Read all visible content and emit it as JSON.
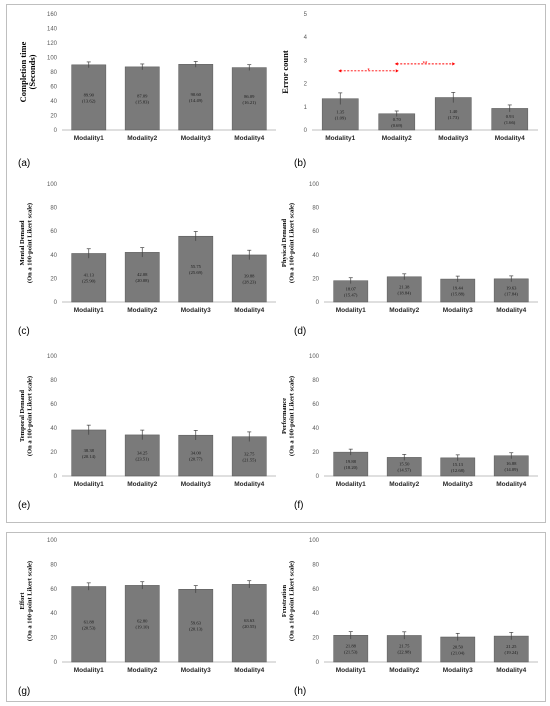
{
  "colors": {
    "bar": "#7a7a7a",
    "bar_stroke": "#555555",
    "axis": "#bfbfbf",
    "error_bar": "#404040",
    "significance": "#ff0000"
  },
  "chart_data": [
    {
      "id": "a",
      "type": "bar",
      "panel_label": "(a)",
      "ylabel": [
        "Completion time",
        "(Seconds)"
      ],
      "categories": [
        "Modality1",
        "Modality2",
        "Modality3",
        "Modality4"
      ],
      "values": [
        89.9,
        87.09,
        90.6,
        86.09
      ],
      "errors": [
        4,
        4,
        4,
        4
      ],
      "data_labels": [
        [
          "89.90",
          "(13.62)"
        ],
        [
          "87.09",
          "(15.83)"
        ],
        [
          "90.60",
          "(14.49)"
        ],
        [
          "86.09",
          "(16.21)"
        ]
      ],
      "ylim": [
        0,
        160
      ],
      "yticks": [
        0,
        20,
        40,
        60,
        80,
        100,
        120,
        140,
        160
      ]
    },
    {
      "id": "b",
      "type": "bar",
      "panel_label": "(b)",
      "ylabel": [
        "Error count"
      ],
      "categories": [
        "Modality1",
        "Modality2",
        "Modality3",
        "Modality4"
      ],
      "values": [
        1.35,
        0.7,
        1.4,
        0.93
      ],
      "errors": [
        0.25,
        0.12,
        0.22,
        0.15
      ],
      "data_labels": [
        [
          "1.35",
          "(1.09)"
        ],
        [
          "0.70",
          "(0.69)"
        ],
        [
          "1.40",
          "(1.73)"
        ],
        [
          "0.93",
          "(1.66)"
        ]
      ],
      "ylim": [
        0,
        5
      ],
      "yticks": [
        0,
        1,
        2,
        3,
        4,
        5
      ],
      "significance": [
        {
          "from": 0,
          "to": 1,
          "y": 2.55,
          "label": "*"
        },
        {
          "from": 1,
          "to": 2,
          "y": 2.85,
          "label": "**"
        }
      ]
    },
    {
      "id": "c",
      "type": "bar",
      "panel_label": "(c)",
      "ylabel": [
        "Mental Demand",
        "(On a 100-point Likert scale)"
      ],
      "categories": [
        "Modality1",
        "Modality2",
        "Modality3",
        "Modality4"
      ],
      "values": [
        41.13,
        42.08,
        55.75,
        39.88
      ],
      "errors": [
        4,
        4,
        4,
        4
      ],
      "data_labels": [
        [
          "41.13",
          "(25.90)"
        ],
        [
          "42.08",
          "(20.08)"
        ],
        [
          "55.75",
          "(25.69)"
        ],
        [
          "39.88",
          "(28.23)"
        ]
      ],
      "ylim": [
        0,
        100
      ],
      "yticks": [
        0,
        20,
        40,
        60,
        80,
        100
      ]
    },
    {
      "id": "d",
      "type": "bar",
      "panel_label": "(d)",
      "ylabel": [
        "Physical Demand",
        "(On a 100-point Likert scale)"
      ],
      "categories": [
        "Modality1",
        "Modality2",
        "Modality3",
        "Modality4"
      ],
      "values": [
        18.07,
        21.38,
        19.44,
        19.63
      ],
      "errors": [
        2.5,
        2.5,
        2.5,
        2.5
      ],
      "data_labels": [
        [
          "18.07",
          "(15.47)"
        ],
        [
          "21.38",
          "(18.84)"
        ],
        [
          "19.44",
          "(15.88)"
        ],
        [
          "19.63",
          "(17.84)"
        ]
      ],
      "ylim": [
        0,
        100
      ],
      "yticks": [
        0,
        20,
        40,
        60,
        80,
        100
      ]
    },
    {
      "id": "e",
      "type": "bar",
      "panel_label": "(e)",
      "ylabel": [
        "Temporal Demand",
        "(On a 100-point Likert scale)"
      ],
      "categories": [
        "Modality1",
        "Modality2",
        "Modality3",
        "Modality4"
      ],
      "values": [
        38.38,
        34.25,
        34.0,
        32.75
      ],
      "errors": [
        4,
        4,
        4,
        4
      ],
      "data_labels": [
        [
          "38.38",
          "(20.14)"
        ],
        [
          "34.25",
          "(23.51)"
        ],
        [
          "34.00",
          "(20.77)"
        ],
        [
          "32.75",
          "(21.55)"
        ]
      ],
      "ylim": [
        0,
        100
      ],
      "yticks": [
        0,
        20,
        40,
        60,
        80,
        100
      ]
    },
    {
      "id": "f",
      "type": "bar",
      "panel_label": "(f)",
      "ylabel": [
        "Performance",
        "(On a 100-point Likert scale)"
      ],
      "categories": [
        "Modality1",
        "Modality2",
        "Modality3",
        "Modality4"
      ],
      "values": [
        19.88,
        15.5,
        15.13,
        16.88
      ],
      "errors": [
        2.5,
        2.5,
        2.5,
        2.5
      ],
      "data_labels": [
        [
          "19.88",
          "(18.20)"
        ],
        [
          "15.50",
          "(14.57)"
        ],
        [
          "15.13",
          "(12.68)"
        ],
        [
          "16.88",
          "(14.09)"
        ]
      ],
      "ylim": [
        0,
        100
      ],
      "yticks": [
        0,
        20,
        40,
        60,
        80,
        100
      ]
    },
    {
      "id": "g",
      "type": "bar",
      "panel_label": "(g)",
      "ylabel": [
        "Effort",
        "(On a 100-point Likert scale)"
      ],
      "categories": [
        "Modality1",
        "Modality2",
        "Modality3",
        "Modality4"
      ],
      "values": [
        61.88,
        62.8,
        59.63,
        63.63
      ],
      "errors": [
        3,
        3,
        3,
        3
      ],
      "data_labels": [
        [
          "61.88",
          "(20.53)"
        ],
        [
          "62.80",
          "(19.10)"
        ],
        [
          "59.63",
          "(20.13)"
        ],
        [
          "63.63",
          "(20.55)"
        ]
      ],
      "ylim": [
        0,
        100
      ],
      "yticks": [
        0,
        20,
        40,
        60,
        80,
        100
      ]
    },
    {
      "id": "h",
      "type": "bar",
      "panel_label": "(h)",
      "ylabel": [
        "Frustration",
        "(On a 100-point Likert scale)"
      ],
      "categories": [
        "Modality1",
        "Modality2",
        "Modality3",
        "Modality4"
      ],
      "values": [
        21.88,
        21.75,
        20.5,
        21.25
      ],
      "errors": [
        3,
        3,
        3,
        3
      ],
      "data_labels": [
        [
          "21.88",
          "(21.53)"
        ],
        [
          "21.75",
          "(22.98)"
        ],
        [
          "20.50",
          "(21.04)"
        ],
        [
          "21.25",
          "(19.24)"
        ]
      ],
      "ylim": [
        0,
        100
      ],
      "yticks": [
        0,
        20,
        40,
        60,
        80,
        100
      ]
    }
  ]
}
